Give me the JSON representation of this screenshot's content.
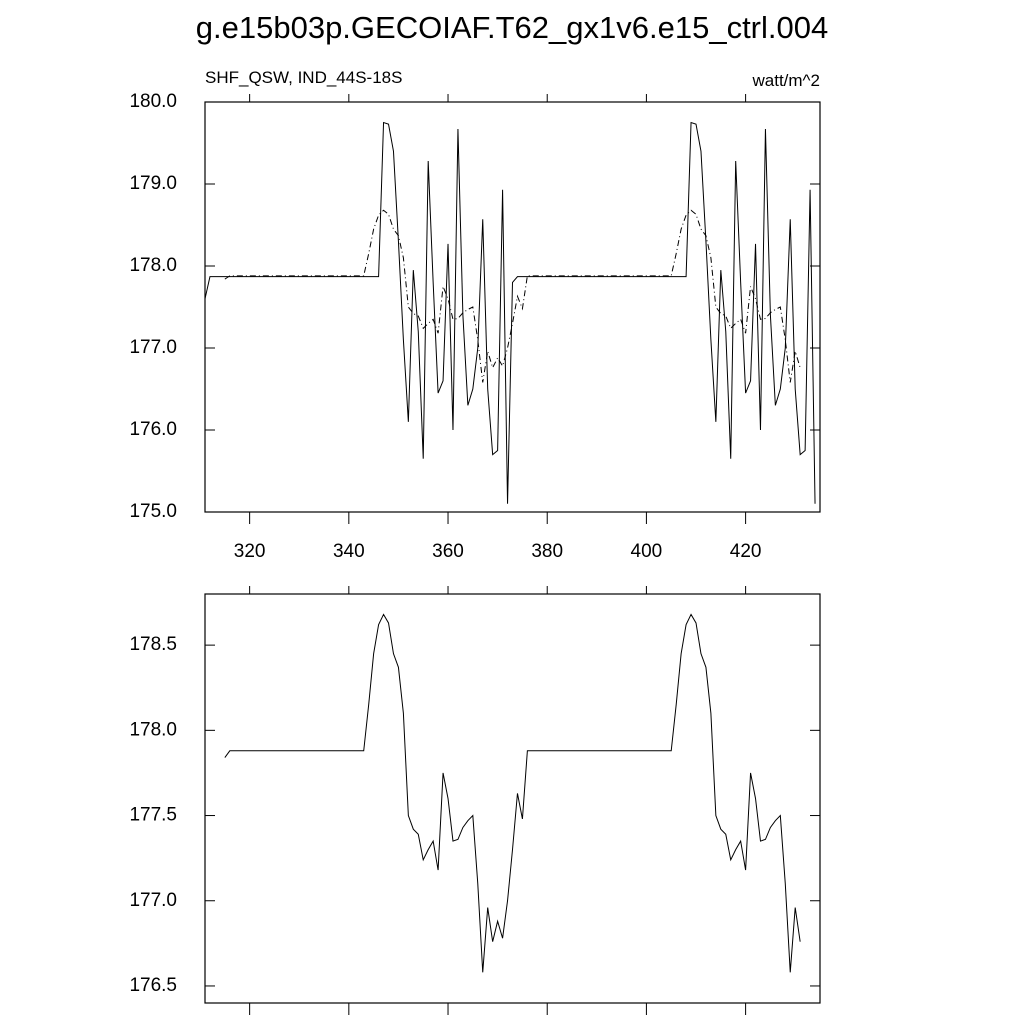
{
  "chart_data": [
    {
      "type": "line",
      "title": "g.e15b03p.GECOIAF.T62_gx1v6.e15_ctrl.004",
      "subtitle": "SHF_QSW, IND_44S-18S",
      "units": "watt/m^2",
      "xlim": [
        311,
        435
      ],
      "ylim": [
        175,
        180
      ],
      "xticks": [
        320,
        340,
        360,
        380,
        400,
        420
      ],
      "yticks": [
        {
          "value": 175,
          "label": "175.0"
        },
        {
          "value": 176,
          "label": "176.0"
        },
        {
          "value": 177,
          "label": "177.0"
        },
        {
          "value": 178,
          "label": "178.0"
        },
        {
          "value": 179,
          "label": "179.0"
        },
        {
          "value": 180,
          "label": "180.0"
        }
      ],
      "series": [
        {
          "color": "#000000",
          "line_style": "solid",
          "x": [
            311,
            312,
            313,
            314,
            315,
            316,
            317,
            318,
            319,
            320,
            321,
            322,
            323,
            324,
            325,
            326,
            327,
            328,
            329,
            330,
            331,
            332,
            333,
            334,
            335,
            336,
            337,
            338,
            339,
            340,
            341,
            342,
            343,
            344,
            345,
            346,
            347,
            348,
            349,
            350,
            351,
            352,
            353,
            354,
            355,
            356,
            357,
            358,
            359,
            360,
            361,
            362,
            363,
            364,
            365,
            366,
            367,
            368,
            369,
            370,
            371,
            372,
            373,
            374,
            375,
            376,
            377,
            378,
            379,
            380,
            381,
            382,
            383,
            384,
            385,
            386,
            387,
            388,
            389,
            390,
            391,
            392,
            393,
            394,
            395,
            396,
            397,
            398,
            399,
            400,
            401,
            402,
            403,
            404,
            405,
            406,
            407,
            408,
            409,
            410,
            411,
            412,
            413,
            414,
            415,
            416,
            417,
            418,
            419,
            420,
            421,
            422,
            423,
            424,
            425,
            426,
            427,
            428,
            429,
            430,
            431,
            432,
            433,
            434
          ],
          "values": [
            177.6,
            177.87,
            177.87,
            177.87,
            177.87,
            177.87,
            177.87,
            177.87,
            177.87,
            177.87,
            177.87,
            177.87,
            177.87,
            177.87,
            177.87,
            177.87,
            177.87,
            177.87,
            177.87,
            177.87,
            177.87,
            177.87,
            177.87,
            177.87,
            177.87,
            177.87,
            177.87,
            177.87,
            177.87,
            177.87,
            177.87,
            177.87,
            177.87,
            177.87,
            177.87,
            177.87,
            179.75,
            179.73,
            179.4,
            178.3,
            177.1,
            176.1,
            177.95,
            177.2,
            175.65,
            179.28,
            177.8,
            176.45,
            176.6,
            178.27,
            176.0,
            179.67,
            177.4,
            176.3,
            176.5,
            177.0,
            178.57,
            176.5,
            175.7,
            175.75,
            178.93,
            175.1,
            177.8,
            177.87,
            177.87,
            177.87,
            177.87,
            177.87,
            177.87,
            177.87,
            177.87,
            177.87,
            177.87,
            177.87,
            177.87,
            177.87,
            177.87,
            177.87,
            177.87,
            177.87,
            177.87,
            177.87,
            177.87,
            177.87,
            177.87,
            177.87,
            177.87,
            177.87,
            177.87,
            177.87,
            177.87,
            177.87,
            177.87,
            177.87,
            177.87,
            177.87,
            177.87,
            177.87,
            179.75,
            179.73,
            179.4,
            178.3,
            177.1,
            176.1,
            177.95,
            177.2,
            175.65,
            179.28,
            177.8,
            176.45,
            176.6,
            178.27,
            176.0,
            179.67,
            177.4,
            176.3,
            176.5,
            177.0,
            178.57,
            176.5,
            175.7,
            175.75,
            178.93,
            175.1
          ]
        },
        {
          "color": "#000000",
          "line_style": "dashed",
          "x": [
            315,
            316,
            317,
            318,
            319,
            320,
            321,
            322,
            323,
            324,
            325,
            326,
            327,
            328,
            329,
            330,
            331,
            332,
            333,
            334,
            335,
            336,
            337,
            338,
            339,
            340,
            341,
            342,
            343,
            344,
            345,
            346,
            347,
            348,
            349,
            350,
            351,
            352,
            353,
            354,
            355,
            356,
            357,
            358,
            359,
            360,
            361,
            362,
            363,
            364,
            365,
            366,
            367,
            368,
            369,
            370,
            371,
            372,
            373,
            374,
            375,
            376,
            377,
            378,
            379,
            380,
            381,
            382,
            383,
            384,
            385,
            386,
            387,
            388,
            389,
            390,
            391,
            392,
            393,
            394,
            395,
            396,
            397,
            398,
            399,
            400,
            401,
            402,
            403,
            404,
            405,
            406,
            407,
            408,
            409,
            410,
            411,
            412,
            413,
            414,
            415,
            416,
            417,
            418,
            419,
            420,
            421,
            422,
            423,
            424,
            425,
            426,
            427,
            428,
            429,
            430,
            431
          ],
          "values": [
            177.84,
            177.88,
            177.88,
            177.88,
            177.88,
            177.88,
            177.88,
            177.88,
            177.88,
            177.88,
            177.88,
            177.88,
            177.88,
            177.88,
            177.88,
            177.88,
            177.88,
            177.88,
            177.88,
            177.88,
            177.88,
            177.88,
            177.88,
            177.88,
            177.88,
            177.88,
            177.88,
            177.88,
            177.88,
            178.15,
            178.45,
            178.62,
            178.68,
            178.63,
            178.45,
            178.37,
            178.1,
            177.5,
            177.42,
            177.39,
            177.24,
            177.3,
            177.35,
            177.18,
            177.75,
            177.6,
            177.35,
            177.36,
            177.43,
            177.47,
            177.5,
            177.1,
            176.58,
            176.96,
            176.76,
            176.88,
            176.78,
            177.0,
            177.3,
            177.63,
            177.48,
            177.88,
            177.88,
            177.88,
            177.88,
            177.88,
            177.88,
            177.88,
            177.88,
            177.88,
            177.88,
            177.88,
            177.88,
            177.88,
            177.88,
            177.88,
            177.88,
            177.88,
            177.88,
            177.88,
            177.88,
            177.88,
            177.88,
            177.88,
            177.88,
            177.88,
            177.88,
            177.88,
            177.88,
            177.88,
            177.88,
            178.15,
            178.45,
            178.62,
            178.68,
            178.63,
            178.45,
            178.37,
            178.1,
            177.5,
            177.42,
            177.39,
            177.24,
            177.3,
            177.35,
            177.18,
            177.75,
            177.6,
            177.35,
            177.36,
            177.43,
            177.47,
            177.5,
            177.1,
            176.58,
            176.96,
            176.76
          ]
        }
      ]
    },
    {
      "type": "line",
      "xlim": [
        311,
        435
      ],
      "ylim": [
        176.4,
        178.8
      ],
      "xticks": [
        320,
        340,
        360,
        380,
        400,
        420
      ],
      "yticks": [
        176.5,
        {
          "value": 177,
          "label": "177.0"
        },
        177.5,
        {
          "value": 178,
          "label": "178.0"
        },
        178.5
      ],
      "series": [
        {
          "color": "#000000",
          "line_style": "solid",
          "x": [
            315,
            316,
            317,
            318,
            319,
            320,
            321,
            322,
            323,
            324,
            325,
            326,
            327,
            328,
            329,
            330,
            331,
            332,
            333,
            334,
            335,
            336,
            337,
            338,
            339,
            340,
            341,
            342,
            343,
            344,
            345,
            346,
            347,
            348,
            349,
            350,
            351,
            352,
            353,
            354,
            355,
            356,
            357,
            358,
            359,
            360,
            361,
            362,
            363,
            364,
            365,
            366,
            367,
            368,
            369,
            370,
            371,
            372,
            373,
            374,
            375,
            376,
            377,
            378,
            379,
            380,
            381,
            382,
            383,
            384,
            385,
            386,
            387,
            388,
            389,
            390,
            391,
            392,
            393,
            394,
            395,
            396,
            397,
            398,
            399,
            400,
            401,
            402,
            403,
            404,
            405,
            406,
            407,
            408,
            409,
            410,
            411,
            412,
            413,
            414,
            415,
            416,
            417,
            418,
            419,
            420,
            421,
            422,
            423,
            424,
            425,
            426,
            427,
            428,
            429,
            430,
            431
          ],
          "values": [
            177.84,
            177.88,
            177.88,
            177.88,
            177.88,
            177.88,
            177.88,
            177.88,
            177.88,
            177.88,
            177.88,
            177.88,
            177.88,
            177.88,
            177.88,
            177.88,
            177.88,
            177.88,
            177.88,
            177.88,
            177.88,
            177.88,
            177.88,
            177.88,
            177.88,
            177.88,
            177.88,
            177.88,
            177.88,
            178.15,
            178.45,
            178.62,
            178.68,
            178.63,
            178.45,
            178.37,
            178.1,
            177.5,
            177.42,
            177.39,
            177.24,
            177.3,
            177.35,
            177.18,
            177.75,
            177.6,
            177.35,
            177.36,
            177.43,
            177.47,
            177.5,
            177.1,
            176.58,
            176.96,
            176.76,
            176.88,
            176.78,
            177.0,
            177.3,
            177.63,
            177.48,
            177.88,
            177.88,
            177.88,
            177.88,
            177.88,
            177.88,
            177.88,
            177.88,
            177.88,
            177.88,
            177.88,
            177.88,
            177.88,
            177.88,
            177.88,
            177.88,
            177.88,
            177.88,
            177.88,
            177.88,
            177.88,
            177.88,
            177.88,
            177.88,
            177.88,
            177.88,
            177.88,
            177.88,
            177.88,
            177.88,
            178.15,
            178.45,
            178.62,
            178.68,
            178.63,
            178.45,
            178.37,
            178.1,
            177.5,
            177.42,
            177.39,
            177.24,
            177.3,
            177.35,
            177.18,
            177.75,
            177.6,
            177.35,
            177.36,
            177.43,
            177.47,
            177.5,
            177.1,
            176.58,
            176.96,
            176.76
          ]
        }
      ]
    }
  ]
}
